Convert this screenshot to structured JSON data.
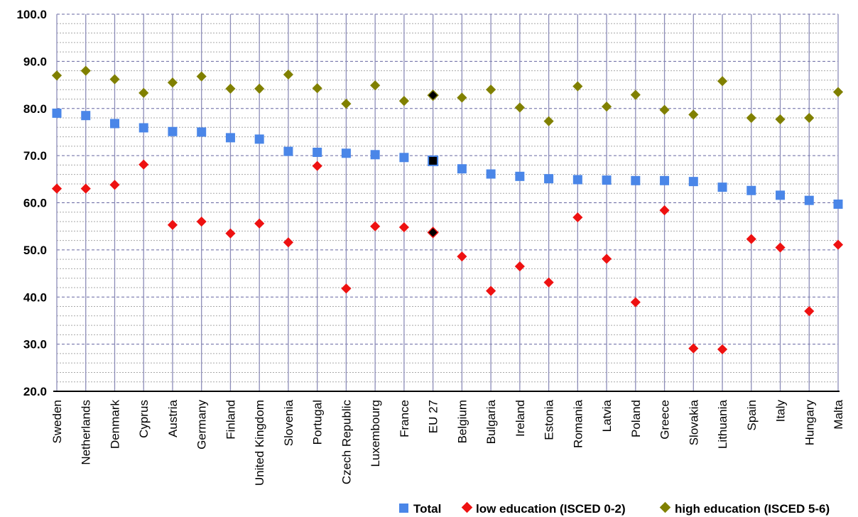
{
  "chart_data": {
    "type": "scatter",
    "title": "",
    "xlabel": "",
    "ylabel": "",
    "ylim": [
      20,
      100
    ],
    "yticks": [
      "20.0",
      "30.0",
      "40.0",
      "50.0",
      "60.0",
      "70.0",
      "80.0",
      "90.0",
      "100.0"
    ],
    "grid": true,
    "legend_position": "bottom-right",
    "categories": [
      "Sweden",
      "Netherlands",
      "Denmark",
      "Cyprus",
      "Austria",
      "Germany",
      "Finland",
      "United Kingdom",
      "Slovenia",
      "Portugal",
      "Czech Republic",
      "Luxembourg",
      "France",
      "EU 27",
      "Belgium",
      "Bulgaria",
      "Ireland",
      "Estonia",
      "Romania",
      "Latvia",
      "Poland",
      "Greece",
      "Slovakia",
      "Lithuania",
      "Spain",
      "Italy",
      "Hungary",
      "Malta"
    ],
    "highlight_category": "EU 27",
    "series": [
      {
        "name": "Total",
        "marker": "square",
        "color": "#4a86e8",
        "values": [
          79.0,
          78.5,
          76.8,
          75.9,
          75.1,
          75.0,
          73.8,
          73.5,
          70.9,
          70.7,
          70.5,
          70.2,
          69.6,
          68.9,
          67.2,
          66.1,
          65.6,
          65.1,
          64.9,
          64.8,
          64.7,
          64.7,
          64.5,
          63.3,
          62.6,
          61.6,
          60.5,
          59.7
        ]
      },
      {
        "name": "low education (ISCED 0-2)",
        "marker": "diamond",
        "color": "#ee1111",
        "values": [
          63.0,
          63.0,
          63.8,
          68.1,
          55.3,
          56.0,
          53.5,
          55.6,
          51.6,
          67.8,
          41.8,
          55.0,
          54.8,
          53.7,
          48.6,
          41.3,
          46.5,
          43.1,
          56.9,
          48.1,
          38.9,
          58.4,
          29.1,
          28.9,
          52.3,
          50.5,
          37.0,
          51.1
        ]
      },
      {
        "name": "high education (ISCED 5-6)",
        "marker": "diamond",
        "color": "#808000",
        "values": [
          87.0,
          88.0,
          86.2,
          83.3,
          85.5,
          86.8,
          84.2,
          84.2,
          87.2,
          84.3,
          81.0,
          84.9,
          81.6,
          82.8,
          82.3,
          84.0,
          80.2,
          77.3,
          84.7,
          80.4,
          82.9,
          79.7,
          78.7,
          85.8,
          78.0,
          77.7,
          78.0,
          83.5
        ]
      }
    ]
  }
}
